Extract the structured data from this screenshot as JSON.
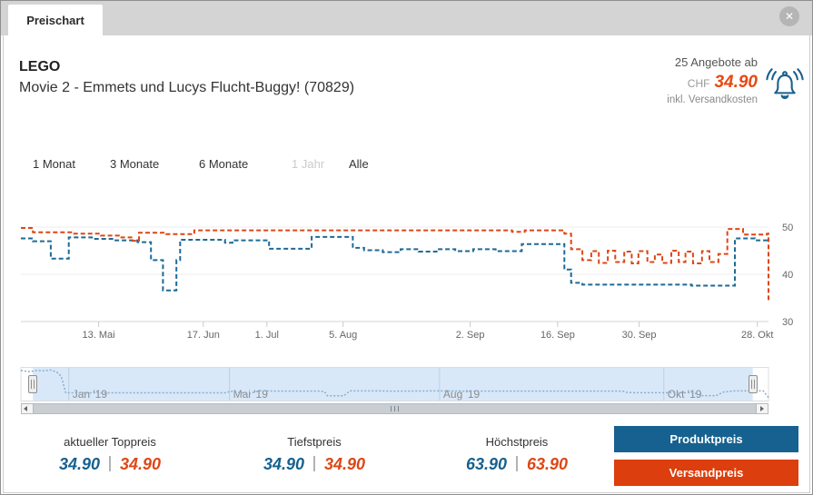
{
  "window": {
    "tab_label": "Preischart",
    "close_icon": "✕"
  },
  "header": {
    "brand": "LEGO",
    "product": "Movie 2 - Emmets und Lucys Flucht-Buggy! (70829)",
    "offers_text": "25 Angebote ab",
    "currency_label": "CHF",
    "best_price": "34.90",
    "price_note": "inkl. Versandkosten",
    "accent_blue": "#16618f",
    "accent_red": "#dc3e0d"
  },
  "ranges": [
    {
      "label": "1 Monat",
      "active": true
    },
    {
      "label": "3 Monate",
      "active": true
    },
    {
      "label": "6 Monate",
      "active": true
    },
    {
      "label": "1 Jahr",
      "active": false
    },
    {
      "label": "Alle",
      "active": true
    }
  ],
  "chart_data": {
    "type": "line",
    "step": true,
    "currency": "CHF",
    "grid": "horizontal",
    "ylim": [
      30,
      54
    ],
    "y_ticks": [
      50,
      40,
      30
    ],
    "x_ticks": [
      {
        "label": "13. Mai",
        "pos": 10.4
      },
      {
        "label": "17. Jun",
        "pos": 24.4
      },
      {
        "label": "1. Jul",
        "pos": 32.9
      },
      {
        "label": "5. Aug",
        "pos": 43.1
      },
      {
        "label": "2. Sep",
        "pos": 60.1
      },
      {
        "label": "16. Sep",
        "pos": 71.8
      },
      {
        "label": "30. Sep",
        "pos": 82.7
      },
      {
        "label": "28. Okt",
        "pos": 98.5
      }
    ],
    "series": [
      {
        "name": "Produktpreis",
        "color": "#1d6a96",
        "dash": "dashed",
        "points": [
          [
            0,
            47.6
          ],
          [
            1.6,
            47.0
          ],
          [
            4.0,
            43.3
          ],
          [
            6.4,
            47.8
          ],
          [
            9.5,
            47.5
          ],
          [
            12.5,
            47.2
          ],
          [
            15.6,
            46.8
          ],
          [
            17.4,
            43.0
          ],
          [
            19.0,
            36.6
          ],
          [
            20.8,
            43.0
          ],
          [
            21.3,
            47.3
          ],
          [
            27.3,
            46.7
          ],
          [
            28.3,
            47.2
          ],
          [
            33.2,
            45.4
          ],
          [
            38.9,
            47.9
          ],
          [
            44.4,
            45.6
          ],
          [
            45.9,
            45.1
          ],
          [
            48.4,
            44.7
          ],
          [
            50.8,
            45.3
          ],
          [
            53.2,
            44.8
          ],
          [
            55.6,
            45.3
          ],
          [
            58.1,
            44.9
          ],
          [
            60.5,
            45.3
          ],
          [
            63.5,
            44.9
          ],
          [
            67.0,
            46.4
          ],
          [
            72.7,
            41.0
          ],
          [
            73.6,
            38.2
          ],
          [
            75.1,
            37.8
          ],
          [
            89.7,
            37.6
          ],
          [
            95.5,
            47.6
          ],
          [
            98.2,
            47.2
          ],
          [
            100,
            47.4
          ]
        ]
      },
      {
        "name": "Versandpreis",
        "color": "#dd4716",
        "dash": "dashed",
        "points": [
          [
            0,
            49.8
          ],
          [
            1.6,
            48.9
          ],
          [
            7.0,
            48.6
          ],
          [
            10.7,
            48.2
          ],
          [
            13.1,
            47.8
          ],
          [
            14.9,
            47.1
          ],
          [
            15.8,
            48.8
          ],
          [
            19.4,
            48.5
          ],
          [
            23.2,
            49.3
          ],
          [
            65.7,
            49.0
          ],
          [
            67.4,
            49.3
          ],
          [
            72.7,
            48.6
          ],
          [
            73.6,
            45.3
          ],
          [
            75.1,
            43.0
          ],
          [
            76.3,
            44.9
          ],
          [
            77.3,
            42.4
          ],
          [
            78.5,
            45.0
          ],
          [
            79.5,
            42.6
          ],
          [
            80.7,
            44.8
          ],
          [
            81.7,
            42.3
          ],
          [
            82.6,
            44.9
          ],
          [
            83.8,
            42.6
          ],
          [
            84.8,
            44.2
          ],
          [
            85.8,
            42.4
          ],
          [
            87.0,
            45.0
          ],
          [
            88.0,
            42.6
          ],
          [
            88.9,
            44.8
          ],
          [
            89.9,
            42.3
          ],
          [
            91.1,
            44.9
          ],
          [
            92.1,
            42.6
          ],
          [
            93.3,
            44.3
          ],
          [
            94.5,
            49.6
          ],
          [
            96.6,
            48.4
          ],
          [
            99.8,
            48.6
          ],
          [
            100,
            34.5
          ]
        ]
      }
    ],
    "navigator": {
      "labels": [
        {
          "label": "Jan '19",
          "pos": 6.4
        },
        {
          "label": "Mai '19",
          "pos": 27.9
        },
        {
          "label": "Aug '19",
          "pos": 56.0
        },
        {
          "label": "Okt '19",
          "pos": 86.0
        }
      ],
      "series_color": "#86aed2",
      "selected_range": [
        1.6,
        97.9
      ],
      "points": [
        [
          0,
          63
        ],
        [
          1.2,
          61.5
        ],
        [
          2,
          63
        ],
        [
          3,
          62.5
        ],
        [
          4,
          63.5
        ],
        [
          4.8,
          61
        ],
        [
          5.4,
          56
        ],
        [
          6,
          36.5
        ],
        [
          27.5,
          36.5
        ],
        [
          28,
          38.5
        ],
        [
          29,
          37
        ],
        [
          30.5,
          35.8
        ],
        [
          32,
          39
        ],
        [
          34,
          38.6
        ],
        [
          40,
          38.6
        ],
        [
          40.6,
          38
        ],
        [
          41,
          33
        ],
        [
          43.2,
          33
        ],
        [
          44,
          38.8
        ],
        [
          48,
          38.8
        ],
        [
          50,
          38.4
        ],
        [
          55,
          38.8
        ],
        [
          60,
          38.5
        ],
        [
          70,
          38.5
        ],
        [
          80.5,
          38.5
        ],
        [
          81,
          37.2
        ],
        [
          82,
          36.6
        ],
        [
          90,
          36.6
        ],
        [
          91,
          33.2
        ],
        [
          93,
          33.2
        ],
        [
          94,
          37.5
        ],
        [
          95.5,
          38.8
        ],
        [
          99.3,
          38.8
        ],
        [
          100,
          31
        ]
      ]
    }
  },
  "stats": [
    {
      "label": "aktueller Toppreis",
      "product_price": "34.90",
      "shipping_price": "34.90"
    },
    {
      "label": "Tiefstpreis",
      "product_price": "34.90",
      "shipping_price": "34.90"
    },
    {
      "label": "Höchstpreis",
      "product_price": "63.90",
      "shipping_price": "63.90"
    }
  ],
  "legend_buttons": [
    {
      "label": "Produktpreis",
      "color": "#16618f"
    },
    {
      "label": "Versandpreis",
      "color": "#dc3e0d"
    }
  ]
}
